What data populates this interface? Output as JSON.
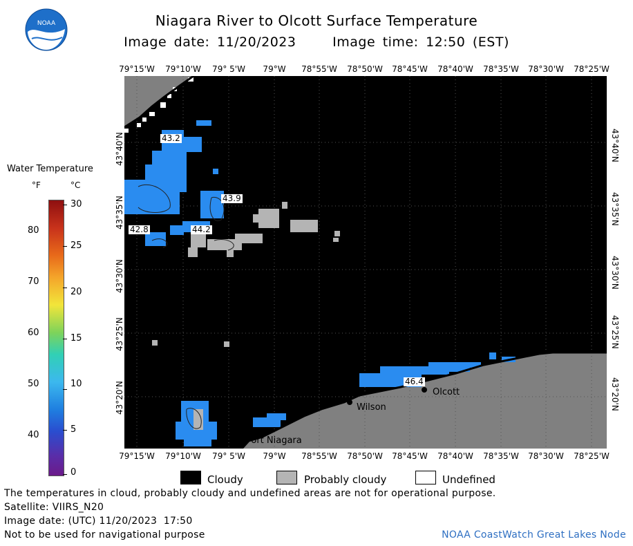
{
  "header": {
    "title": "Niagara River to Olcott Surface Temperature",
    "subtitle": "Image date: 11/20/2023     Image time: 12:50 (EST)"
  },
  "logo": {
    "text": "NOAA",
    "icon": "noaa-logo-icon"
  },
  "legend": {
    "title": "Water Temperature",
    "unit_f": "°F",
    "unit_c": "°C",
    "ticks_f": [
      "80",
      "70",
      "60",
      "50",
      "40"
    ],
    "ticks_c": [
      "30",
      "25",
      "20",
      "15",
      "10",
      "5",
      "0"
    ]
  },
  "axes": {
    "lon_labels": [
      "79°15'W",
      "79°10'W",
      "79° 5'W",
      "79°W",
      "78°55'W",
      "78°50'W",
      "78°45'W",
      "78°40'W",
      "78°35'W",
      "78°30'W",
      "78°25'W"
    ],
    "lat_labels": [
      "43°40'N",
      "43°35'N",
      "43°30'N",
      "43°25'N",
      "43°20'N"
    ]
  },
  "map": {
    "temperature_labels": [
      "43.2",
      "43.9",
      "42.8",
      "44.2",
      "46.4"
    ],
    "places": [
      "Port Niagara",
      "Wilson",
      "Olcott"
    ],
    "colors": {
      "cloud": "#000000",
      "probably_cloudy": "#b4b4b4",
      "undefined": "#ffffff",
      "land": "#808080",
      "water": "#2a8cf0"
    }
  },
  "key": {
    "cloudy": "Cloudy",
    "probably_cloudy": "Probably cloudy",
    "undefined": "Undefined"
  },
  "notes": {
    "line1": "The temperatures in cloud, probably cloudy and undefined areas are not for operational purpose.",
    "line2": "Satellite: VIIRS_N20",
    "line3": "Image date: (UTC) 11/20/2023  17:50",
    "line4": "Not to be used for navigational purpose",
    "credit": "NOAA CoastWatch Great Lakes Node"
  }
}
